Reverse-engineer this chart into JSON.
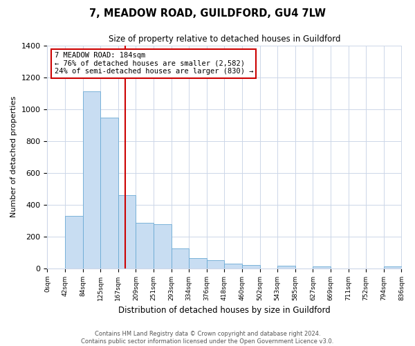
{
  "title": "7, MEADOW ROAD, GUILDFORD, GU4 7LW",
  "subtitle": "Size of property relative to detached houses in Guildford",
  "xlabel": "Distribution of detached houses by size in Guildford",
  "ylabel": "Number of detached properties",
  "bar_values": [
    0,
    330,
    1110,
    945,
    460,
    285,
    275,
    125,
    65,
    50,
    30,
    20,
    0,
    15,
    0,
    10,
    0,
    0,
    0,
    10
  ],
  "bin_edges": [
    0,
    42,
    84,
    125,
    167,
    209,
    251,
    293,
    334,
    376,
    418,
    460,
    502,
    543,
    585,
    627,
    669,
    711,
    752,
    794,
    836
  ],
  "tick_labels": [
    "0sqm",
    "42sqm",
    "84sqm",
    "125sqm",
    "167sqm",
    "209sqm",
    "251sqm",
    "293sqm",
    "334sqm",
    "376sqm",
    "418sqm",
    "460sqm",
    "502sqm",
    "543sqm",
    "585sqm",
    "627sqm",
    "669sqm",
    "711sqm",
    "752sqm",
    "794sqm",
    "836sqm"
  ],
  "bar_color": "#c8ddf2",
  "bar_edge_color": "#6aaad4",
  "red_line_x": 184,
  "ylim": [
    0,
    1400
  ],
  "yticks": [
    0,
    200,
    400,
    600,
    800,
    1000,
    1200,
    1400
  ],
  "annotation_title": "7 MEADOW ROAD: 184sqm",
  "annotation_line1": "← 76% of detached houses are smaller (2,582)",
  "annotation_line2": "24% of semi-detached houses are larger (830) →",
  "annotation_box_color": "#ffffff",
  "annotation_box_edge": "#cc0000",
  "footer_line1": "Contains HM Land Registry data © Crown copyright and database right 2024.",
  "footer_line2": "Contains public sector information licensed under the Open Government Licence v3.0.",
  "background_color": "#ffffff",
  "grid_color": "#ccd6e8"
}
